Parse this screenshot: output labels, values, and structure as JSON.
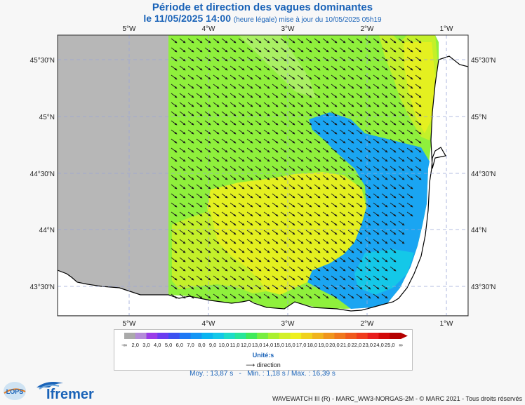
{
  "header": {
    "title": "Période et direction des vagues dominantes",
    "date_line": "le 11/05/2025 14:00",
    "date_note": "(heure légale) mise à jour du 10/05/2025 05h19"
  },
  "axes": {
    "lon_labels": [
      "5°W",
      "4°W",
      "3°W",
      "2°W",
      "1°W"
    ],
    "lat_labels": [
      "45°30'N",
      "45°N",
      "44°30'N",
      "44°N",
      "43°30'N"
    ]
  },
  "legend": {
    "ticks": [
      "-∞",
      "2,0",
      "3,0",
      "4,0",
      "5,0",
      "6,0",
      "7,0",
      "8,0",
      "9,0",
      "10,0",
      "11,0",
      "12,0",
      "13,0",
      "14,0",
      "15,0",
      "16,0",
      "17,0",
      "18,0",
      "19,0",
      "20,0",
      "21,0",
      "22,0",
      "23,0",
      "24,0",
      "25,0",
      "∞"
    ],
    "colors": [
      "#aaaaaa",
      "#b48cd8",
      "#9a3ce8",
      "#6a3cf0",
      "#3c50f0",
      "#1e78f5",
      "#1496f5",
      "#0ab4f0",
      "#14c8e8",
      "#1edcc8",
      "#28e69a",
      "#40ea5a",
      "#78ee40",
      "#aaf030",
      "#d2f028",
      "#eef01e",
      "#f0d21e",
      "#f0b41e",
      "#f0961e",
      "#f0781e",
      "#f05a1e",
      "#f03c1e",
      "#e81e1e",
      "#d20a0a",
      "#b40000"
    ],
    "units_label": "Unité:s",
    "direction_label": "direction"
  },
  "stats": {
    "mean": "Moy. : 13,87 s",
    "range": "Min. : 1,18 s / Max. : 16,39 s",
    "separator": "-"
  },
  "logos": {
    "lops": "LOPS",
    "ifremer": "Ifremer"
  },
  "credits": "WAVEWATCH III (R) - MARC_WW3-NORGAS-2M - © MARC 2021 - Tous droits réservés",
  "map_colors": {
    "land": "#ffffff",
    "nodata": "#b7b7b7",
    "green": "#8ff03c",
    "lime": "#c4f02a",
    "yellow": "#e4f020",
    "cyan": "#14c8e8",
    "blue": "#1aa5f2",
    "grid": "#9aa6d8",
    "arrow": "#1a1a1a"
  }
}
